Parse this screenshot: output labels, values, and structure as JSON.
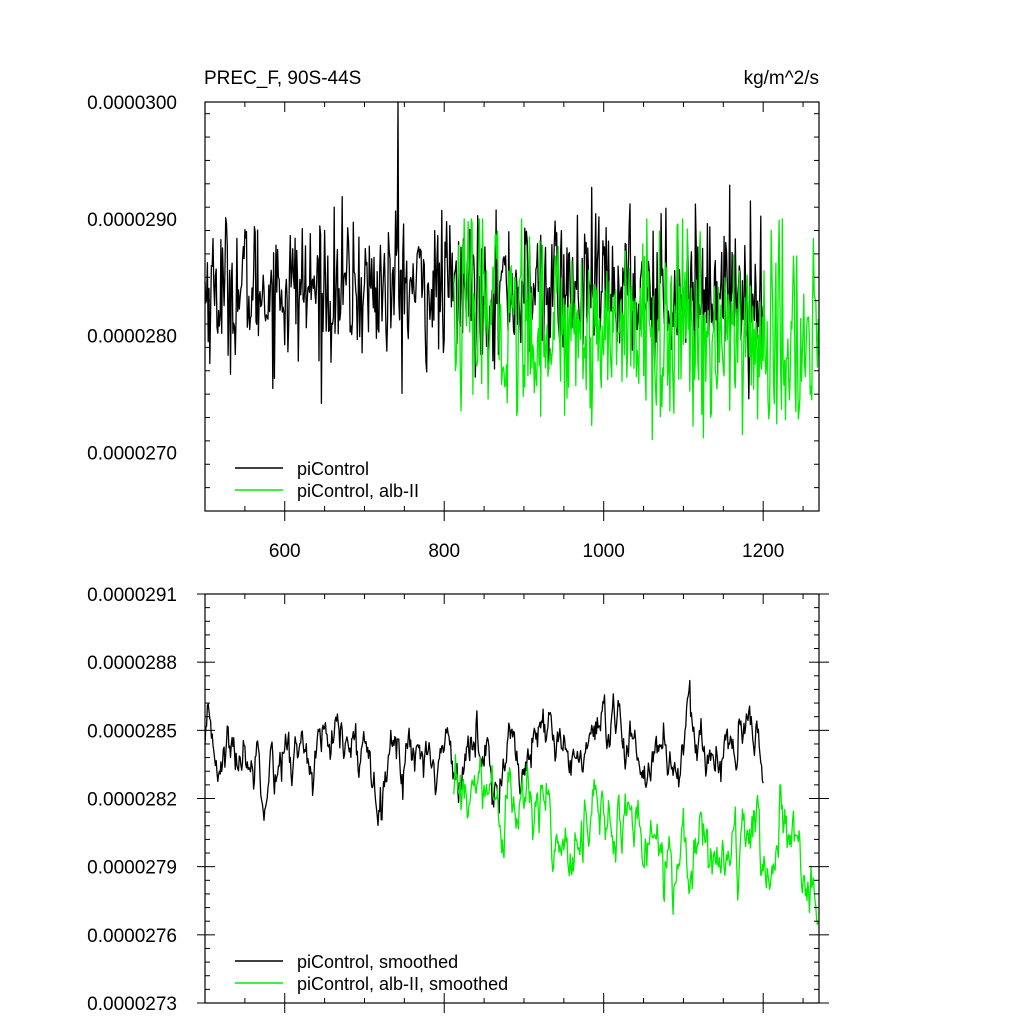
{
  "chart_data": [
    {
      "type": "line",
      "title": "PREC_F, 90S-44S",
      "units": "kg/m^2/s",
      "xlim": [
        500,
        1270
      ],
      "ylim": [
        2.65e-05,
        3e-05
      ],
      "xticks": [
        600,
        800,
        1000,
        1200
      ],
      "xtick_labels": [
        "600",
        "800",
        "1000",
        "1200"
      ],
      "yticks": [
        2.7e-05,
        2.8e-05,
        2.9e-05,
        3e-05
      ],
      "ytick_labels": [
        "0.0000270",
        "0.0000280",
        "0.0000290",
        "0.0000300"
      ],
      "legend_placement": "bottom-left",
      "series": [
        {
          "name": "piControl",
          "color": "#000000",
          "x_start": 500,
          "x_end": 1200,
          "mean": 2.84e-05,
          "amplitude": 3e-07,
          "min": 2.74e-05,
          "max": 3e-05,
          "peak_x": 742
        },
        {
          "name": "piControl, alb-II",
          "color": "#00ee00",
          "x_start": 812,
          "x_end": 1270,
          "mean_start": 2.82e-05,
          "mean_end": 2.79e-05,
          "amplitude": 4e-07,
          "min": 2.68e-05,
          "max": 2.9e-05
        }
      ]
    },
    {
      "type": "line",
      "title": "",
      "xlim": [
        500,
        1270
      ],
      "ylim": [
        2.73e-05,
        2.91e-05
      ],
      "xticks": [
        600,
        800,
        1000,
        1200
      ],
      "yticks": [
        2.73e-05,
        2.76e-05,
        2.79e-05,
        2.82e-05,
        2.85e-05,
        2.88e-05,
        2.91e-05
      ],
      "ytick_labels": [
        "0.0000273",
        "0.0000276",
        "0.0000279",
        "0.0000282",
        "0.0000285",
        "0.0000288",
        "0.0000291"
      ],
      "legend_placement": "bottom-left",
      "series": [
        {
          "name": "piControl, smoothed",
          "color": "#000000",
          "x_start": 500,
          "x_end": 1200,
          "mean": 2.84e-05,
          "amplitude": 1.2e-07,
          "min": 2.8e-05,
          "max": 2.89e-05
        },
        {
          "name": "piControl, alb-II, smoothed",
          "color": "#00ee00",
          "x_start": 812,
          "x_end": 1270,
          "mean_start": 2.82e-05,
          "mean_end": 2.79e-05,
          "amplitude": 1.5e-07,
          "min": 2.75e-05,
          "max": 2.84e-05
        }
      ]
    }
  ]
}
